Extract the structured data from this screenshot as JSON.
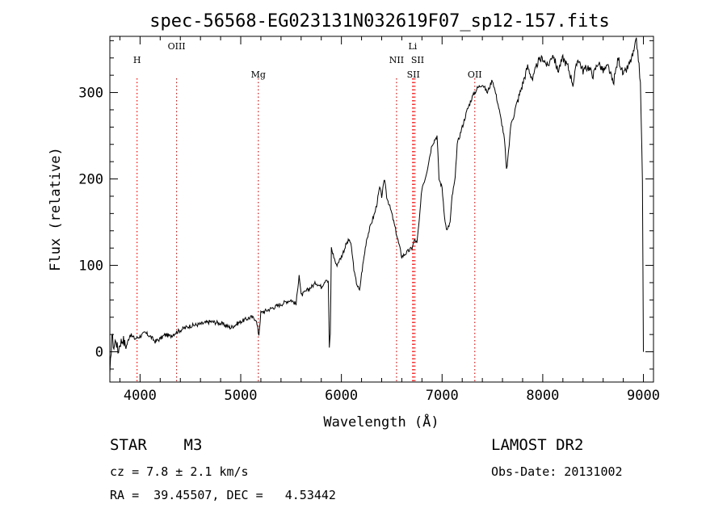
{
  "chart_data": {
    "type": "line",
    "title": "spec-56568-EG023131N032619F07_sp12-157.fits",
    "xlabel": "Wavelength (Å)",
    "ylabel": "Flux (relative)",
    "xlim": [
      3700,
      9100
    ],
    "ylim": [
      -35,
      365
    ],
    "xticks": [
      4000,
      5000,
      6000,
      7000,
      8000,
      9000
    ],
    "yticks": [
      0,
      100,
      200,
      300
    ],
    "grid": false,
    "series": [
      {
        "x": [
          3700,
          3720,
          3740,
          3760,
          3780,
          3800,
          3830,
          3860,
          3900,
          3950,
          4000,
          4050,
          4100,
          4150,
          4200,
          4250,
          4300,
          4350,
          4400,
          4450,
          4500,
          4600,
          4700,
          4800,
          4900,
          5000,
          5100,
          5150,
          5180,
          5200,
          5300,
          5400,
          5450,
          5500,
          5550,
          5580,
          5600,
          5650,
          5700,
          5750,
          5800,
          5850,
          5870,
          5880,
          5890,
          5900,
          5950,
          6000,
          6050,
          6080,
          6100,
          6130,
          6150,
          6180,
          6200,
          6250,
          6300,
          6330,
          6350,
          6380,
          6400,
          6430,
          6450,
          6500,
          6550,
          6580,
          6600,
          6650,
          6700,
          6730,
          6750,
          6780,
          6800,
          6830,
          6850,
          6900,
          6950,
          6970,
          7000,
          7030,
          7050,
          7080,
          7100,
          7130,
          7150,
          7200,
          7250,
          7300,
          7350,
          7400,
          7450,
          7500,
          7550,
          7600,
          7620,
          7640,
          7660,
          7680,
          7700,
          7750,
          7800,
          7850,
          7900,
          7950,
          8000,
          8050,
          8100,
          8150,
          8200,
          8250,
          8300,
          8350,
          8400,
          8450,
          8500,
          8550,
          8600,
          8650,
          8700,
          8750,
          8800,
          8850,
          8900,
          8930,
          8950,
          8970,
          8990,
          9000
        ],
        "y": [
          -30,
          20,
          5,
          15,
          0,
          10,
          15,
          5,
          20,
          15,
          18,
          22,
          18,
          12,
          15,
          20,
          18,
          22,
          25,
          28,
          30,
          32,
          35,
          33,
          28,
          35,
          40,
          38,
          20,
          45,
          50,
          55,
          58,
          60,
          55,
          90,
          65,
          70,
          75,
          80,
          75,
          85,
          80,
          5,
          20,
          120,
          100,
          110,
          125,
          130,
          120,
          90,
          80,
          70,
          90,
          130,
          150,
          160,
          170,
          190,
          180,
          200,
          180,
          160,
          135,
          120,
          110,
          115,
          120,
          130,
          125,
          160,
          190,
          200,
          210,
          240,
          250,
          200,
          190,
          150,
          140,
          150,
          180,
          200,
          240,
          260,
          280,
          295,
          305,
          310,
          300,
          315,
          290,
          260,
          245,
          210,
          230,
          260,
          270,
          290,
          310,
          330,
          315,
          335,
          340,
          330,
          345,
          325,
          340,
          330,
          310,
          340,
          325,
          330,
          320,
          335,
          325,
          330,
          310,
          340,
          320,
          330,
          345,
          360,
          340,
          310,
          200,
          0
        ]
      }
    ],
    "annotations": [
      {
        "label": "H",
        "x": 3970
      },
      {
        "label": "OIII",
        "x": 4363
      },
      {
        "label": "Mg",
        "x": 5175
      },
      {
        "label": "NII",
        "x": 6548
      },
      {
        "label": "Li",
        "x": 6708
      },
      {
        "label": "SII",
        "x": 6717
      },
      {
        "label": "SII",
        "x": 6731
      },
      {
        "label": "OII",
        "x": 7325
      }
    ],
    "line_color": "#000000",
    "marker_color": "#ff0000"
  },
  "info": {
    "class_label": "STAR    M3",
    "survey": "LAMOST DR2",
    "cz": "cz = 7.8 ± 2.1 km/s",
    "obs_date": "Obs-Date: 20131002",
    "radec": "RA =  39.45507, DEC =   4.53442"
  }
}
